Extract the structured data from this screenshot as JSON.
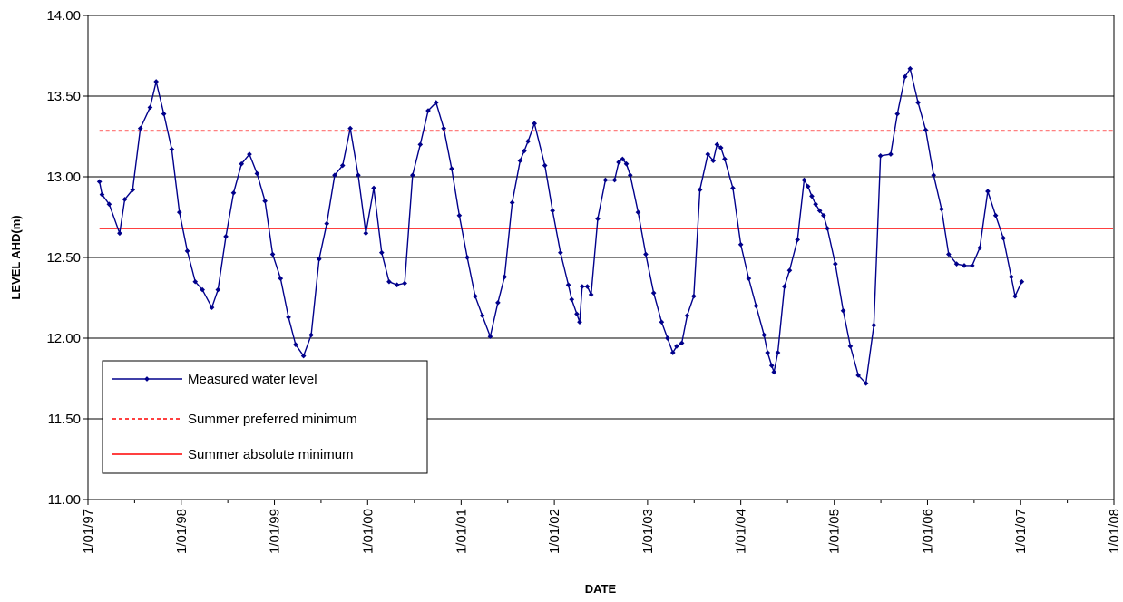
{
  "chart_data": {
    "type": "line",
    "title": "",
    "xlabel": "DATE",
    "ylabel": "LEVEL AHD(m)",
    "ylim": [
      11.0,
      14.0
    ],
    "y_ticks": [
      "11.00",
      "11.50",
      "12.00",
      "12.50",
      "13.00",
      "13.50",
      "14.00"
    ],
    "xlim": [
      "1997-01-01",
      "2008-01-01"
    ],
    "x_ticks": [
      {
        "date": "1997-01-01",
        "label": "1/01/97"
      },
      {
        "date": "1998-01-01",
        "label": "1/01/98"
      },
      {
        "date": "1999-01-01",
        "label": "1/01/99"
      },
      {
        "date": "2000-01-01",
        "label": "1/01/00"
      },
      {
        "date": "2001-01-01",
        "label": "1/01/01"
      },
      {
        "date": "2002-01-01",
        "label": "1/01/02"
      },
      {
        "date": "2003-01-01",
        "label": "1/01/03"
      },
      {
        "date": "2004-01-01",
        "label": "1/01/04"
      },
      {
        "date": "2005-01-01",
        "label": "1/01/05"
      },
      {
        "date": "2006-01-01",
        "label": "1/01/06"
      },
      {
        "date": "2007-01-01",
        "label": "1/01/07"
      },
      {
        "date": "2008-01-01",
        "label": "1/01/08"
      }
    ],
    "grid": "horizontal",
    "legend_position": "bottom-left",
    "series": [
      {
        "name": "Measured water level",
        "color": "#00008B",
        "style": "line-markers",
        "points": [
          [
            "1997-02-15",
            12.97
          ],
          [
            "1997-02-25",
            12.89
          ],
          [
            "1997-03-25",
            12.83
          ],
          [
            "1997-05-05",
            12.65
          ],
          [
            "1997-05-25",
            12.86
          ],
          [
            "1997-06-25",
            12.92
          ],
          [
            "1997-07-25",
            13.3
          ],
          [
            "1997-09-01",
            13.43
          ],
          [
            "1997-09-25",
            13.59
          ],
          [
            "1997-10-25",
            13.39
          ],
          [
            "1997-11-25",
            13.17
          ],
          [
            "1997-12-25",
            12.78
          ],
          [
            "1998-01-25",
            12.54
          ],
          [
            "1998-02-25",
            12.35
          ],
          [
            "1998-03-25",
            12.3
          ],
          [
            "1998-05-01",
            12.19
          ],
          [
            "1998-05-25",
            12.3
          ],
          [
            "1998-06-25",
            12.63
          ],
          [
            "1998-07-25",
            12.9
          ],
          [
            "1998-08-25",
            13.08
          ],
          [
            "1998-09-25",
            13.14
          ],
          [
            "1998-10-25",
            13.02
          ],
          [
            "1998-11-25",
            12.85
          ],
          [
            "1998-12-25",
            12.52
          ],
          [
            "1999-01-25",
            12.37
          ],
          [
            "1999-02-25",
            12.13
          ],
          [
            "1999-03-25",
            11.96
          ],
          [
            "1999-04-25",
            11.89
          ],
          [
            "1999-05-25",
            12.02
          ],
          [
            "1999-06-25",
            12.49
          ],
          [
            "1999-07-25",
            12.71
          ],
          [
            "1999-08-25",
            13.01
          ],
          [
            "1999-09-25",
            13.07
          ],
          [
            "1999-10-25",
            13.3
          ],
          [
            "1999-11-25",
            13.01
          ],
          [
            "1999-12-25",
            12.65
          ],
          [
            "2000-01-25",
            12.93
          ],
          [
            "2000-02-25",
            12.53
          ],
          [
            "2000-03-25",
            12.35
          ],
          [
            "2000-04-25",
            12.33
          ],
          [
            "2000-05-25",
            12.34
          ],
          [
            "2000-06-25",
            13.01
          ],
          [
            "2000-07-25",
            13.2
          ],
          [
            "2000-08-25",
            13.41
          ],
          [
            "2000-09-25",
            13.46
          ],
          [
            "2000-10-25",
            13.3
          ],
          [
            "2000-11-25",
            13.05
          ],
          [
            "2000-12-25",
            12.76
          ],
          [
            "2001-01-25",
            12.5
          ],
          [
            "2001-02-25",
            12.26
          ],
          [
            "2001-03-25",
            12.14
          ],
          [
            "2001-04-25",
            12.01
          ],
          [
            "2001-05-25",
            12.22
          ],
          [
            "2001-06-20",
            12.38
          ],
          [
            "2001-07-20",
            12.84
          ],
          [
            "2001-08-20",
            13.1
          ],
          [
            "2001-09-05",
            13.16
          ],
          [
            "2001-09-20",
            13.22
          ],
          [
            "2001-10-15",
            13.33
          ],
          [
            "2001-11-25",
            13.07
          ],
          [
            "2001-12-25",
            12.79
          ],
          [
            "2002-01-25",
            12.53
          ],
          [
            "2002-02-25",
            12.33
          ],
          [
            "2002-03-10",
            12.24
          ],
          [
            "2002-03-30",
            12.15
          ],
          [
            "2002-04-10",
            12.1
          ],
          [
            "2002-04-20",
            12.32
          ],
          [
            "2002-05-10",
            12.32
          ],
          [
            "2002-05-25",
            12.27
          ],
          [
            "2002-06-20",
            12.74
          ],
          [
            "2002-07-20",
            12.98
          ],
          [
            "2002-08-25",
            12.98
          ],
          [
            "2002-09-10",
            13.09
          ],
          [
            "2002-09-25",
            13.11
          ],
          [
            "2002-10-10",
            13.08
          ],
          [
            "2002-10-25",
            13.01
          ],
          [
            "2002-11-25",
            12.78
          ],
          [
            "2002-12-25",
            12.52
          ],
          [
            "2003-01-25",
            12.28
          ],
          [
            "2003-02-25",
            12.1
          ],
          [
            "2003-03-20",
            12.0
          ],
          [
            "2003-04-10",
            11.91
          ],
          [
            "2003-04-25",
            11.95
          ],
          [
            "2003-05-15",
            11.97
          ],
          [
            "2003-06-05",
            12.14
          ],
          [
            "2003-07-01",
            12.26
          ],
          [
            "2003-07-25",
            12.92
          ],
          [
            "2003-08-25",
            13.14
          ],
          [
            "2003-09-15",
            13.1
          ],
          [
            "2003-09-30",
            13.2
          ],
          [
            "2003-10-15",
            13.18
          ],
          [
            "2003-10-30",
            13.11
          ],
          [
            "2003-12-01",
            12.93
          ],
          [
            "2004-01-01",
            12.58
          ],
          [
            "2004-02-01",
            12.37
          ],
          [
            "2004-03-01",
            12.2
          ],
          [
            "2004-04-01",
            12.02
          ],
          [
            "2004-04-15",
            11.91
          ],
          [
            "2004-05-01",
            11.83
          ],
          [
            "2004-05-10",
            11.79
          ],
          [
            "2004-05-25",
            11.91
          ],
          [
            "2004-06-20",
            12.32
          ],
          [
            "2004-07-10",
            12.42
          ],
          [
            "2004-08-10",
            12.61
          ],
          [
            "2004-09-05",
            12.98
          ],
          [
            "2004-09-20",
            12.94
          ],
          [
            "2004-10-05",
            12.88
          ],
          [
            "2004-10-20",
            12.83
          ],
          [
            "2004-11-05",
            12.79
          ],
          [
            "2004-11-20",
            12.76
          ],
          [
            "2004-12-05",
            12.68
          ],
          [
            "2005-01-05",
            12.46
          ],
          [
            "2005-02-05",
            12.17
          ],
          [
            "2005-03-05",
            11.95
          ],
          [
            "2005-04-05",
            11.77
          ],
          [
            "2005-05-05",
            11.72
          ],
          [
            "2005-06-05",
            12.08
          ],
          [
            "2005-07-01",
            13.13
          ],
          [
            "2005-08-10",
            13.14
          ],
          [
            "2005-09-05",
            13.39
          ],
          [
            "2005-10-05",
            13.62
          ],
          [
            "2005-10-25",
            13.67
          ],
          [
            "2005-11-25",
            13.46
          ],
          [
            "2005-12-25",
            13.29
          ],
          [
            "2006-01-25",
            13.01
          ],
          [
            "2006-02-25",
            12.8
          ],
          [
            "2006-03-25",
            12.52
          ],
          [
            "2006-04-25",
            12.46
          ],
          [
            "2006-05-25",
            12.45
          ],
          [
            "2006-06-25",
            12.45
          ],
          [
            "2006-07-25",
            12.56
          ],
          [
            "2006-08-25",
            12.91
          ],
          [
            "2006-09-25",
            12.76
          ],
          [
            "2006-10-25",
            12.62
          ],
          [
            "2006-11-25",
            12.38
          ],
          [
            "2006-12-10",
            12.26
          ],
          [
            "2007-01-05",
            12.35
          ]
        ]
      },
      {
        "name": "Summer preferred minimum",
        "color": "#FF0000",
        "style": "dashed",
        "y": 13.285,
        "x_range": [
          "1997-02-15",
          "2008-01-01"
        ]
      },
      {
        "name": "Summer absolute minimum",
        "color": "#FF0000",
        "style": "solid",
        "y": 12.68,
        "x_range": [
          "1997-02-15",
          "2008-01-01"
        ]
      }
    ]
  }
}
